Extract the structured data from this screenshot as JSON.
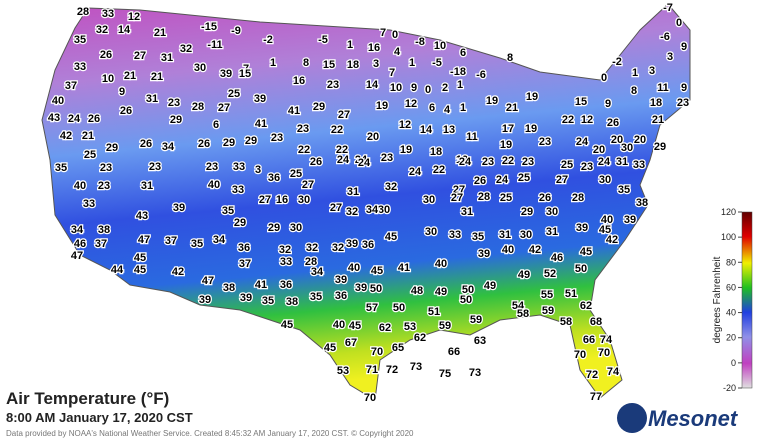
{
  "map": {
    "title": "Air Temperature (°F)",
    "subtitle": "8:00 AM January 17, 2020 CST",
    "credit": "Data provided by NOAA's National Weather Service. Created 8:45:32 AM January 17, 2020 CST. © Copyright 2020",
    "logo": "Mesonet",
    "colorbar": {
      "label": "degrees Fahrenheit",
      "lim": [
        -20,
        120
      ],
      "ticks": [
        -20,
        0,
        20,
        40,
        60,
        80,
        100,
        120
      ]
    },
    "stations": [
      28,
      33,
      12,
      35,
      32,
      14,
      21,
      -15,
      -9,
      -11,
      -2,
      -5,
      1,
      16,
      7,
      0,
      4,
      -8,
      10,
      6,
      8,
      -7,
      0,
      -6,
      9,
      26,
      27,
      31,
      32,
      7,
      1,
      8,
      15,
      18,
      3,
      7,
      1,
      -5,
      -18,
      -6,
      -2,
      1,
      3,
      3,
      33,
      10,
      21,
      21,
      30,
      39,
      15,
      16,
      23,
      14,
      10,
      9,
      0,
      2,
      1,
      0,
      8,
      11,
      9,
      37,
      9,
      31,
      23,
      28,
      25,
      39,
      29,
      19,
      12,
      6,
      4,
      1,
      19,
      19,
      21,
      15,
      9,
      18,
      23,
      40,
      26,
      27,
      41,
      27,
      43,
      24,
      26,
      29,
      6,
      41,
      23,
      20,
      12,
      14,
      13,
      11,
      17,
      19,
      22,
      12,
      26,
      21,
      42,
      21,
      22,
      20,
      20,
      29,
      25,
      29,
      26,
      34,
      26,
      29,
      29,
      23,
      22,
      22,
      24,
      23,
      19,
      18,
      19,
      19,
      23,
      24,
      20,
      30,
      35,
      23,
      23,
      23,
      33,
      3,
      36,
      25,
      26,
      24,
      24,
      24,
      22,
      24,
      23,
      22,
      23,
      25,
      23,
      24,
      31,
      33,
      40,
      23,
      31,
      40,
      33,
      27,
      31,
      32,
      27,
      26,
      24,
      25,
      27,
      30,
      35,
      33,
      35,
      27,
      16,
      30,
      30,
      30,
      27,
      28,
      25,
      26,
      28,
      38,
      43,
      39,
      29,
      29,
      30,
      27,
      32,
      34,
      31,
      29,
      30,
      40,
      39,
      34,
      38,
      47,
      37,
      35,
      34,
      36,
      32,
      32,
      32,
      39,
      36,
      45,
      30,
      33,
      35,
      31,
      30,
      31,
      39,
      45,
      42,
      46,
      37,
      45,
      47,
      44,
      45,
      42,
      37,
      33,
      28,
      40,
      45,
      41,
      40,
      39,
      40,
      42,
      46,
      45,
      47,
      38,
      41,
      36,
      34,
      39,
      39,
      50,
      48,
      49,
      50,
      49,
      49,
      52,
      50,
      39,
      39,
      35,
      38,
      35,
      36,
      50,
      51,
      50,
      54,
      55,
      51,
      57,
      45,
      40,
      45,
      62,
      53,
      59,
      59,
      58,
      59,
      62,
      58,
      68,
      45,
      67,
      70,
      65,
      62,
      63,
      66,
      66,
      74,
      70,
      70,
      71,
      72,
      73,
      75,
      73,
      53,
      72,
      74,
      70,
      77
    ]
  }
}
